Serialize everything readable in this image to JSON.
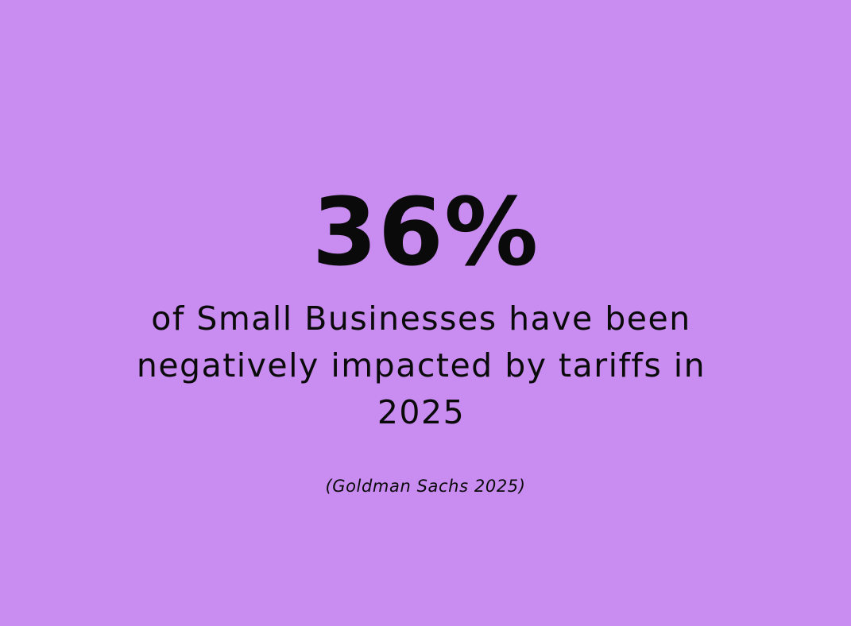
{
  "background_color": "#c98cf0",
  "text_color": "#0a0a0a",
  "stat": {
    "value": "36%",
    "description": "of Small Businesses have been negatively impacted by tariffs in 2025",
    "source": "(Goldman Sachs 2025)"
  }
}
